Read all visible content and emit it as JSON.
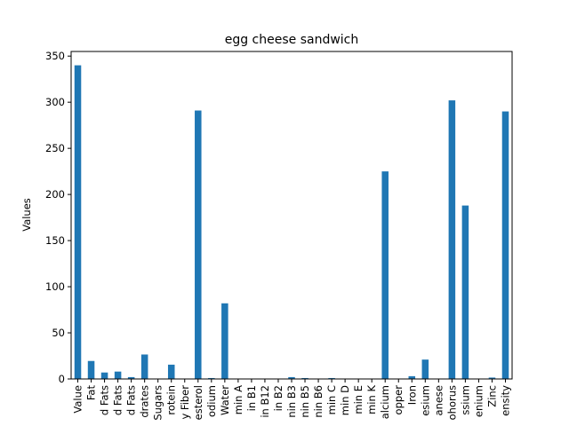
{
  "chart_data": {
    "type": "bar",
    "title": "egg cheese sandwich",
    "xlabel": "",
    "ylabel": "Values",
    "ylim": [
      0,
      355
    ],
    "yticks": [
      0,
      50,
      100,
      150,
      200,
      250,
      300,
      350
    ],
    "bar_color": "#1f77b4",
    "grid": false,
    "categories": [
      "Value",
      "Fat",
      "d Fats",
      "d Fats",
      "d Fats",
      "drates",
      "Sugars",
      "rotein",
      "y Fiber",
      "esterol",
      "odium",
      "Water",
      "min A",
      "in B1",
      "in B12",
      "in B2",
      "nin B3",
      "nin B5",
      "nin B6",
      "min C",
      "min D",
      "min E",
      "min K",
      "alcium",
      "opper",
      "Iron",
      "esium",
      "anese",
      "ohorus",
      "ssium",
      "enium",
      "Zinc",
      "ensity"
    ],
    "values": [
      340,
      19.5,
      7,
      8,
      2,
      26.5,
      0.3,
      15.5,
      0.3,
      291,
      1,
      82,
      0.2,
      0.2,
      0.2,
      0.3,
      2,
      1,
      0.3,
      1,
      0.1,
      0.3,
      0.1,
      225,
      0.1,
      3,
      21,
      0.1,
      302,
      188,
      0.1,
      1.5,
      290
    ]
  }
}
